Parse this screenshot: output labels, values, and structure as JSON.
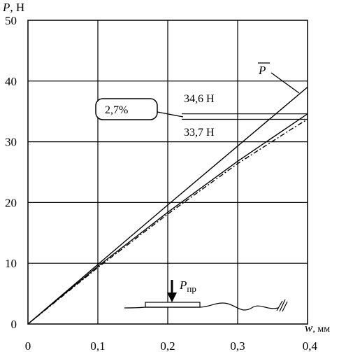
{
  "chart_data": {
    "type": "line",
    "ylabel": {
      "symbol": "P",
      "unit": ", Н"
    },
    "xlabel": {
      "symbol": "w",
      "unit": ", мм"
    },
    "xlim": [
      0,
      0.4
    ],
    "ylim": [
      0,
      50
    ],
    "x_ticks": [
      {
        "value": 0,
        "label": "0"
      },
      {
        "value": 0.1,
        "label": "0,1"
      },
      {
        "value": 0.2,
        "label": "0,2"
      },
      {
        "value": 0.3,
        "label": "0,3"
      },
      {
        "value": 0.4,
        "label": "0,4"
      }
    ],
    "y_ticks": [
      {
        "value": 0,
        "label": "0"
      },
      {
        "value": 10,
        "label": "10"
      },
      {
        "value": 20,
        "label": "20"
      },
      {
        "value": 30,
        "label": "30"
      },
      {
        "value": 40,
        "label": "40"
      },
      {
        "value": 50,
        "label": "50"
      }
    ],
    "grid": true,
    "series": [
      {
        "name": "P̄",
        "style": "solid",
        "points": [
          [
            0,
            0
          ],
          [
            0.1,
            9.8
          ],
          [
            0.2,
            19.6
          ],
          [
            0.3,
            29.3
          ],
          [
            0.4,
            39
          ]
        ]
      },
      {
        "style": "solid",
        "points": [
          [
            0,
            0
          ],
          [
            0.1,
            9.5
          ],
          [
            0.2,
            18.4
          ],
          [
            0.3,
            26.8
          ],
          [
            0.4,
            34.6
          ]
        ]
      },
      {
        "style": "dashdot",
        "points": [
          [
            0,
            0
          ],
          [
            0.1,
            9.3
          ],
          [
            0.2,
            18.1
          ],
          [
            0.3,
            26.4
          ],
          [
            0.38,
            32.3
          ],
          [
            0.4,
            33.7
          ]
        ]
      }
    ],
    "reference_lines": [
      {
        "y": 34.6,
        "x_from": 0.22,
        "label": "34,6 Н"
      },
      {
        "y": 33.7,
        "x_from": 0.22,
        "label": "33,7 Н"
      }
    ],
    "annotations": {
      "percent_diff": "2,7%",
      "series_label": "P",
      "load_label_main": "P",
      "load_label_sub": "пр"
    }
  }
}
